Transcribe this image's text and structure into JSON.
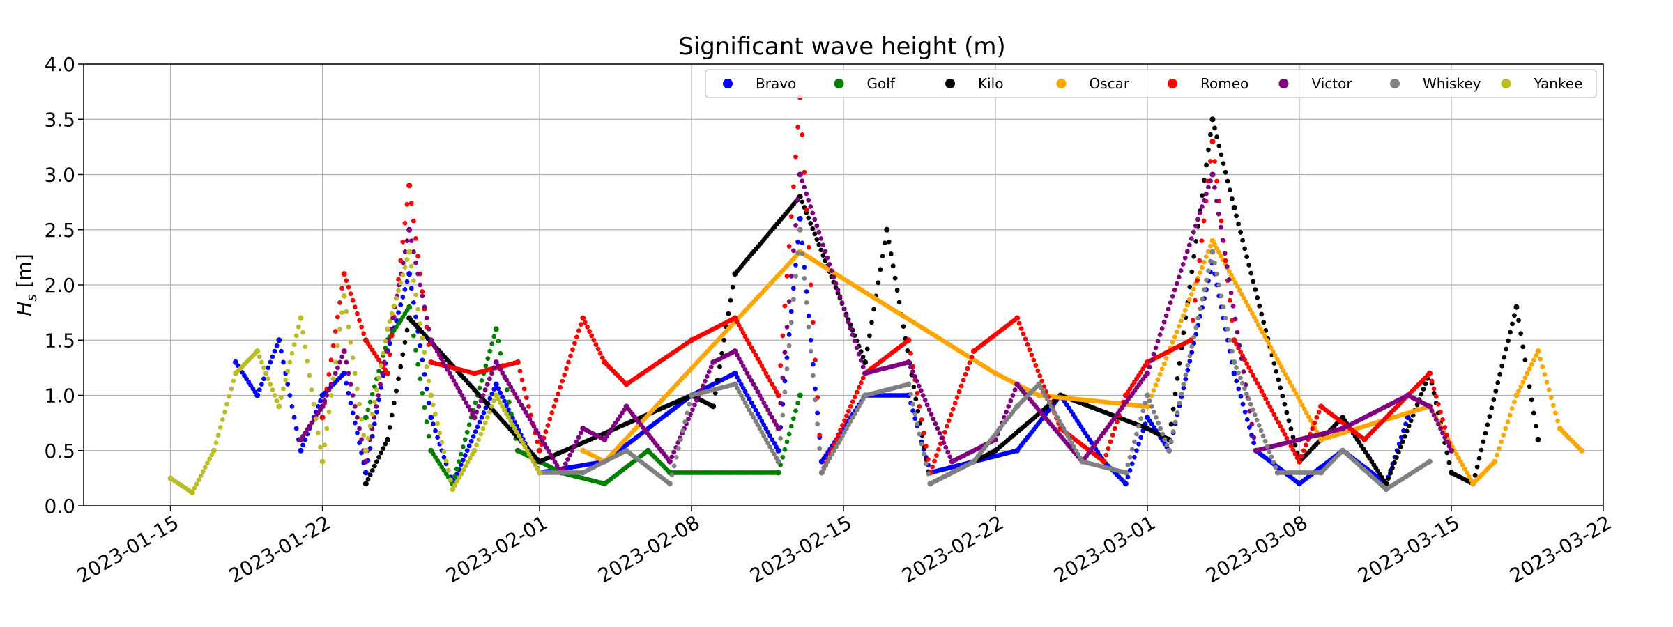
{
  "chart_data": {
    "type": "scatter",
    "title": "Significant wave height (m)",
    "ylabel": "H",
    "ylabel_sub": "s",
    "ylabel_unit": " [m]",
    "xlabel": "",
    "ylim": [
      0,
      4.0
    ],
    "xlim": [
      "2023-01-11",
      "2023-03-22"
    ],
    "grid": true,
    "legend_position": "top-right",
    "y_ticks": [
      "0.0",
      "0.5",
      "1.0",
      "1.5",
      "2.0",
      "2.5",
      "3.0",
      "3.5",
      "4.0"
    ],
    "x_ticks": [
      "2023-01-15",
      "2023-01-22",
      "2023-02-01",
      "2023-02-08",
      "2023-02-15",
      "2023-02-22",
      "2023-03-01",
      "2023-03-08",
      "2023-03-15",
      "2023-03-22"
    ],
    "series": [
      {
        "name": "Bravo",
        "color": "#0000ff",
        "points": [
          [
            "2023-01-18",
            1.3
          ],
          [
            "2023-01-19",
            1.0
          ],
          [
            "2023-01-20",
            1.5
          ],
          [
            "2023-01-21",
            0.5
          ],
          [
            "2023-01-22",
            1.0
          ],
          [
            "2023-01-23",
            1.2
          ],
          [
            "2023-01-24",
            0.3
          ],
          [
            "2023-01-25",
            1.4
          ],
          [
            "2023-01-26",
            2.1
          ],
          [
            "2023-01-27",
            0.8
          ],
          [
            "2023-01-28",
            0.2
          ],
          [
            "2023-01-30",
            1.1
          ],
          [
            "2023-02-01",
            0.3
          ],
          [
            "2023-02-04",
            0.4
          ],
          [
            "2023-02-08",
            1.0
          ],
          [
            "2023-02-10",
            1.2
          ],
          [
            "2023-02-12",
            0.5
          ],
          [
            "2023-02-13",
            2.6
          ],
          [
            "2023-02-14",
            0.4
          ],
          [
            "2023-02-16",
            1.0
          ],
          [
            "2023-02-18",
            1.0
          ],
          [
            "2023-02-19",
            0.3
          ],
          [
            "2023-02-21",
            0.4
          ],
          [
            "2023-02-23",
            0.5
          ],
          [
            "2023-02-25",
            1.0
          ],
          [
            "2023-02-27",
            0.4
          ],
          [
            "2023-02-28",
            0.2
          ],
          [
            "2023-03-01",
            0.8
          ],
          [
            "2023-03-02",
            0.5
          ],
          [
            "2023-03-04",
            2.2
          ],
          [
            "2023-03-05",
            1.2
          ],
          [
            "2023-03-06",
            0.5
          ],
          [
            "2023-03-08",
            0.2
          ],
          [
            "2023-03-10",
            0.5
          ],
          [
            "2023-03-12",
            0.2
          ],
          [
            "2023-03-13",
            0.8
          ]
        ]
      },
      {
        "name": "Golf",
        "color": "#008000",
        "points": [
          [
            "2023-01-24",
            0.8
          ],
          [
            "2023-01-25",
            1.5
          ],
          [
            "2023-01-26",
            1.8
          ],
          [
            "2023-01-27",
            0.5
          ],
          [
            "2023-01-28",
            0.2
          ],
          [
            "2023-01-30",
            1.6
          ],
          [
            "2023-01-31",
            0.5
          ],
          [
            "2023-02-02",
            0.3
          ],
          [
            "2023-02-04",
            0.2
          ],
          [
            "2023-02-06",
            0.5
          ],
          [
            "2023-02-07",
            0.3
          ],
          [
            "2023-02-12",
            0.3
          ],
          [
            "2023-02-13",
            1.0
          ]
        ]
      },
      {
        "name": "Kilo",
        "color": "#000000",
        "points": [
          [
            "2023-01-24",
            0.2
          ],
          [
            "2023-01-25",
            0.6
          ],
          [
            "2023-01-26",
            1.7
          ],
          [
            "2023-02-01",
            0.4
          ],
          [
            "2023-02-08",
            1.0
          ],
          [
            "2023-02-09",
            0.9
          ],
          [
            "2023-02-10",
            2.1
          ],
          [
            "2023-02-13",
            2.8
          ],
          [
            "2023-02-16",
            1.3
          ],
          [
            "2023-02-17",
            2.5
          ],
          [
            "2023-02-19",
            0.2
          ],
          [
            "2023-02-22",
            0.5
          ],
          [
            "2023-02-25",
            1.0
          ],
          [
            "2023-03-01",
            0.7
          ],
          [
            "2023-03-02",
            0.6
          ],
          [
            "2023-03-04",
            3.5
          ],
          [
            "2023-03-05",
            2.7
          ],
          [
            "2023-03-08",
            0.4
          ],
          [
            "2023-03-10",
            0.8
          ],
          [
            "2023-03-12",
            0.2
          ],
          [
            "2023-03-14",
            1.2
          ],
          [
            "2023-03-15",
            0.3
          ],
          [
            "2023-03-16",
            0.2
          ],
          [
            "2023-03-18",
            1.8
          ],
          [
            "2023-03-19",
            0.6
          ]
        ]
      },
      {
        "name": "Oscar",
        "color": "#ffa500",
        "points": [
          [
            "2023-02-03",
            0.5
          ],
          [
            "2023-02-04",
            0.4
          ],
          [
            "2023-02-13",
            2.3
          ],
          [
            "2023-02-22",
            1.2
          ],
          [
            "2023-02-24",
            1.0
          ],
          [
            "2023-03-01",
            0.9
          ],
          [
            "2023-03-04",
            2.4
          ],
          [
            "2023-03-09",
            0.6
          ],
          [
            "2023-03-14",
            0.9
          ],
          [
            "2023-03-16",
            0.2
          ],
          [
            "2023-03-17",
            0.4
          ],
          [
            "2023-03-18",
            1.0
          ],
          [
            "2023-03-19",
            1.4
          ],
          [
            "2023-03-20",
            0.7
          ],
          [
            "2023-03-21",
            0.5
          ]
        ]
      },
      {
        "name": "Romeo",
        "color": "#ff0000",
        "points": [
          [
            "2023-01-22",
            0.8
          ],
          [
            "2023-01-23",
            2.1
          ],
          [
            "2023-01-24",
            1.5
          ],
          [
            "2023-01-25",
            1.2
          ],
          [
            "2023-01-26",
            2.9
          ],
          [
            "2023-01-27",
            1.3
          ],
          [
            "2023-01-29",
            1.2
          ],
          [
            "2023-01-31",
            1.3
          ],
          [
            "2023-02-01",
            0.5
          ],
          [
            "2023-02-03",
            1.7
          ],
          [
            "2023-02-04",
            1.3
          ],
          [
            "2023-02-05",
            1.1
          ],
          [
            "2023-02-08",
            1.5
          ],
          [
            "2023-02-10",
            1.7
          ],
          [
            "2023-02-12",
            1.0
          ],
          [
            "2023-02-13",
            3.7
          ],
          [
            "2023-02-14",
            0.3
          ],
          [
            "2023-02-16",
            1.2
          ],
          [
            "2023-02-18",
            1.5
          ],
          [
            "2023-02-19",
            0.3
          ],
          [
            "2023-02-21",
            1.4
          ],
          [
            "2023-02-23",
            1.7
          ],
          [
            "2023-02-25",
            0.7
          ],
          [
            "2023-02-27",
            0.4
          ],
          [
            "2023-02-28",
            1.0
          ],
          [
            "2023-03-01",
            1.3
          ],
          [
            "2023-03-03",
            1.5
          ],
          [
            "2023-03-04",
            3.3
          ],
          [
            "2023-03-05",
            1.5
          ],
          [
            "2023-03-08",
            0.4
          ],
          [
            "2023-03-09",
            0.9
          ],
          [
            "2023-03-11",
            0.6
          ],
          [
            "2023-03-13",
            1.0
          ],
          [
            "2023-03-14",
            1.2
          ],
          [
            "2023-03-15",
            0.5
          ]
        ]
      },
      {
        "name": "Victor",
        "color": "#800080",
        "points": [
          [
            "2023-01-21",
            0.6
          ],
          [
            "2023-01-22",
            0.9
          ],
          [
            "2023-01-23",
            1.4
          ],
          [
            "2023-01-24",
            0.4
          ],
          [
            "2023-01-26",
            2.5
          ],
          [
            "2023-01-27",
            1.5
          ],
          [
            "2023-01-29",
            0.8
          ],
          [
            "2023-01-30",
            1.3
          ],
          [
            "2023-02-02",
            0.3
          ],
          [
            "2023-02-03",
            0.7
          ],
          [
            "2023-02-04",
            0.6
          ],
          [
            "2023-02-05",
            0.9
          ],
          [
            "2023-02-07",
            0.4
          ],
          [
            "2023-02-09",
            1.3
          ],
          [
            "2023-02-10",
            1.4
          ],
          [
            "2023-02-12",
            0.7
          ],
          [
            "2023-02-13",
            3.0
          ],
          [
            "2023-02-16",
            1.2
          ],
          [
            "2023-02-18",
            1.3
          ],
          [
            "2023-02-20",
            0.4
          ],
          [
            "2023-02-22",
            0.6
          ],
          [
            "2023-02-23",
            1.1
          ],
          [
            "2023-02-26",
            0.4
          ],
          [
            "2023-03-01",
            1.2
          ],
          [
            "2023-03-04",
            3.0
          ],
          [
            "2023-03-06",
            0.5
          ],
          [
            "2023-03-10",
            0.7
          ],
          [
            "2023-03-13",
            1.0
          ],
          [
            "2023-03-14",
            0.9
          ],
          [
            "2023-03-15",
            0.5
          ]
        ]
      },
      {
        "name": "Whiskey",
        "color": "#808080",
        "points": [
          [
            "2023-02-01",
            0.3
          ],
          [
            "2023-02-03",
            0.3
          ],
          [
            "2023-02-05",
            0.5
          ],
          [
            "2023-02-07",
            0.2
          ],
          [
            "2023-02-08",
            1.0
          ],
          [
            "2023-02-10",
            1.1
          ],
          [
            "2023-02-12",
            0.4
          ],
          [
            "2023-02-13",
            2.5
          ],
          [
            "2023-02-14",
            0.3
          ],
          [
            "2023-02-16",
            1.0
          ],
          [
            "2023-02-18",
            1.1
          ],
          [
            "2023-02-19",
            0.2
          ],
          [
            "2023-02-21",
            0.4
          ],
          [
            "2023-02-23",
            0.9
          ],
          [
            "2023-02-24",
            1.1
          ],
          [
            "2023-02-26",
            0.4
          ],
          [
            "2023-02-28",
            0.3
          ],
          [
            "2023-03-01",
            1.0
          ],
          [
            "2023-03-02",
            0.5
          ],
          [
            "2023-03-04",
            2.3
          ],
          [
            "2023-03-05",
            1.3
          ],
          [
            "2023-03-07",
            0.3
          ],
          [
            "2023-03-09",
            0.3
          ],
          [
            "2023-03-10",
            0.5
          ],
          [
            "2023-03-12",
            0.15
          ],
          [
            "2023-03-14",
            0.4
          ]
        ]
      },
      {
        "name": "Yankee",
        "color": "#bcbd22",
        "points": [
          [
            "2023-01-15",
            0.25
          ],
          [
            "2023-01-16",
            0.12
          ],
          [
            "2023-01-17",
            0.5
          ],
          [
            "2023-01-18",
            1.2
          ],
          [
            "2023-01-19",
            1.4
          ],
          [
            "2023-01-20",
            0.9
          ],
          [
            "2023-01-21",
            1.7
          ],
          [
            "2023-01-22",
            0.4
          ],
          [
            "2023-01-23",
            1.9
          ],
          [
            "2023-01-24",
            0.5
          ],
          [
            "2023-01-25",
            1.6
          ],
          [
            "2023-01-26",
            2.3
          ],
          [
            "2023-01-27",
            1.0
          ],
          [
            "2023-01-28",
            0.15
          ],
          [
            "2023-01-29",
            0.5
          ],
          [
            "2023-01-30",
            1.0
          ],
          [
            "2023-02-01",
            0.3
          ]
        ]
      }
    ]
  }
}
